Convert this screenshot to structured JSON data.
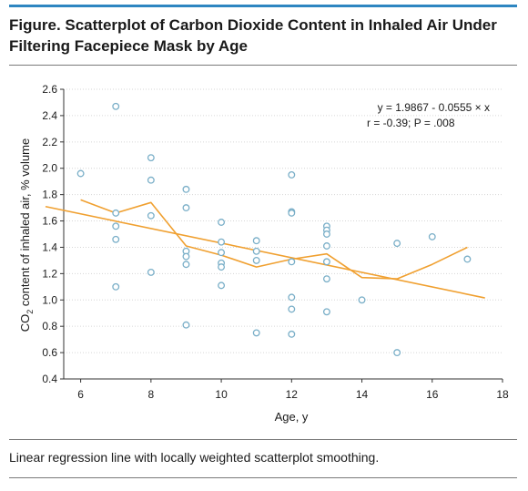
{
  "header": {
    "title": "Figure. Scatterplot of Carbon Dioxide Content in Inhaled Air Under Filtering Facepiece Mask by Age",
    "accent_color": "#2e86c1"
  },
  "caption": "Linear regression line with locally weighted scatterplot smoothing.",
  "chart_data": {
    "type": "scatter",
    "xlabel": "Age, y",
    "ylabel": "CO2 content of inhaled air, % volume",
    "ylabel_parts": {
      "pre": "CO",
      "sub": "2",
      "post": " content of inhaled air, % volume"
    },
    "xlim": [
      5,
      18
    ],
    "ylim": [
      0.4,
      2.6
    ],
    "xticks": [
      6,
      8,
      10,
      12,
      14,
      16,
      18
    ],
    "yticks": [
      0.4,
      0.6,
      0.8,
      1.0,
      1.2,
      1.4,
      1.6,
      1.8,
      2.0,
      2.2,
      2.4,
      2.6
    ],
    "ytick_labels": [
      "0.4",
      "0.6",
      "0.8",
      "1.0",
      "1.2",
      "1.4",
      "1.6",
      "1.8",
      "2.0",
      "2.2",
      "2.4",
      "2.6"
    ],
    "grid": "horizontal",
    "point_color": "#7aafc8",
    "line_color": "#f0a030",
    "points": [
      {
        "x": 6,
        "y": 1.96
      },
      {
        "x": 7,
        "y": 2.47
      },
      {
        "x": 7,
        "y": 1.66
      },
      {
        "x": 7,
        "y": 1.56
      },
      {
        "x": 7,
        "y": 1.46
      },
      {
        "x": 7,
        "y": 1.1
      },
      {
        "x": 8,
        "y": 2.08
      },
      {
        "x": 8,
        "y": 1.91
      },
      {
        "x": 8,
        "y": 1.64
      },
      {
        "x": 8,
        "y": 1.21
      },
      {
        "x": 9,
        "y": 1.84
      },
      {
        "x": 9,
        "y": 1.7
      },
      {
        "x": 9,
        "y": 1.37
      },
      {
        "x": 9,
        "y": 1.33
      },
      {
        "x": 9,
        "y": 1.27
      },
      {
        "x": 9,
        "y": 0.81
      },
      {
        "x": 10,
        "y": 1.59
      },
      {
        "x": 10,
        "y": 1.44
      },
      {
        "x": 10,
        "y": 1.36
      },
      {
        "x": 10,
        "y": 1.28
      },
      {
        "x": 10,
        "y": 1.25
      },
      {
        "x": 10,
        "y": 1.11
      },
      {
        "x": 11,
        "y": 1.45
      },
      {
        "x": 11,
        "y": 1.37
      },
      {
        "x": 11,
        "y": 1.3
      },
      {
        "x": 11,
        "y": 0.75
      },
      {
        "x": 12,
        "y": 1.95
      },
      {
        "x": 12,
        "y": 1.67
      },
      {
        "x": 12,
        "y": 1.66
      },
      {
        "x": 12,
        "y": 1.29
      },
      {
        "x": 12,
        "y": 1.02
      },
      {
        "x": 12,
        "y": 0.93
      },
      {
        "x": 12,
        "y": 0.74
      },
      {
        "x": 13,
        "y": 1.56
      },
      {
        "x": 13,
        "y": 1.53
      },
      {
        "x": 13,
        "y": 1.5
      },
      {
        "x": 13,
        "y": 1.41
      },
      {
        "x": 13,
        "y": 1.29
      },
      {
        "x": 13,
        "y": 1.16
      },
      {
        "x": 13,
        "y": 0.91
      },
      {
        "x": 14,
        "y": 1.0
      },
      {
        "x": 15,
        "y": 1.43
      },
      {
        "x": 15,
        "y": 0.6
      },
      {
        "x": 16,
        "y": 1.48
      },
      {
        "x": 17,
        "y": 1.31
      }
    ],
    "regression": {
      "intercept": 1.9867,
      "slope": -0.0555,
      "x_range": [
        5,
        17.5
      ]
    },
    "lowess": [
      {
        "x": 6,
        "y": 1.76
      },
      {
        "x": 7,
        "y": 1.66
      },
      {
        "x": 8,
        "y": 1.74
      },
      {
        "x": 9,
        "y": 1.41
      },
      {
        "x": 10,
        "y": 1.34
      },
      {
        "x": 11,
        "y": 1.25
      },
      {
        "x": 12,
        "y": 1.31
      },
      {
        "x": 13,
        "y": 1.35
      },
      {
        "x": 14,
        "y": 1.17
      },
      {
        "x": 15,
        "y": 1.16
      },
      {
        "x": 16,
        "y": 1.27
      },
      {
        "x": 17,
        "y": 1.4
      }
    ],
    "annotation_line1": "y = 1.9867 - 0.0555 × x",
    "annotation_line2": "r = -0.39; P = .008"
  }
}
